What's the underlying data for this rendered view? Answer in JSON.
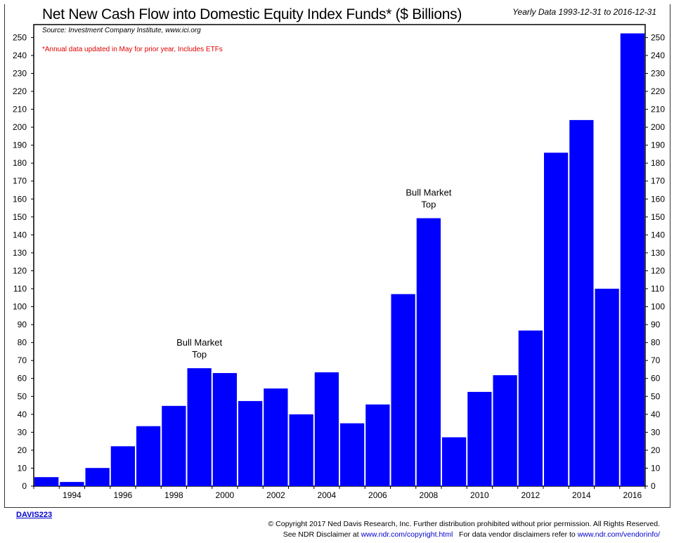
{
  "chart_data": {
    "type": "bar",
    "title": "Net New Cash Flow into Domestic Equity Index Funds* ($ Billions)",
    "subtitle": "Yearly Data 1993-12-31 to 2016-12-31",
    "source": "Source:  Investment Company Institute, www.ici.org",
    "note": "*Annual data updated in May for prior year, Includes ETFs",
    "categories": [
      1993,
      1994,
      1995,
      1996,
      1997,
      1998,
      1999,
      2000,
      2001,
      2002,
      2003,
      2004,
      2005,
      2006,
      2007,
      2008,
      2009,
      2010,
      2011,
      2012,
      2013,
      2014,
      2015,
      2016
    ],
    "values": [
      5,
      2.3,
      10.1,
      22.2,
      33.4,
      44.7,
      65.7,
      63,
      47.4,
      54.4,
      40,
      63.4,
      35,
      45.5,
      107,
      149.3,
      27.2,
      52.5,
      61.8,
      86.7,
      185.8,
      204,
      110,
      252.3
    ],
    "x_tick_labels": [
      "1994",
      "1996",
      "1998",
      "2000",
      "2002",
      "2004",
      "2006",
      "2008",
      "2010",
      "2012",
      "2014",
      "2016"
    ],
    "y_ticks": [
      0,
      10,
      20,
      30,
      40,
      50,
      60,
      70,
      80,
      90,
      100,
      110,
      120,
      130,
      140,
      150,
      160,
      170,
      180,
      190,
      200,
      210,
      220,
      230,
      240,
      250
    ],
    "ylim": [
      0,
      255
    ],
    "bar_color": "#0000ff",
    "grid": false,
    "annotations": [
      {
        "text": [
          "Bull Market",
          "Top"
        ],
        "year": 1999
      },
      {
        "text": [
          "Bull Market",
          "Top"
        ],
        "year": 2008
      }
    ]
  },
  "footer": {
    "id": "DAVIS223",
    "copyright": "© Copyright 2017 Ned Davis Research, Inc. Further distribution prohibited without prior permission. All Rights Reserved.",
    "disclaimer_prefix": "See NDR Disclaimer at ",
    "disclaimer_link": "www.ndr.com/copyright.html",
    "vendor_prefix": "   For data vendor disclaimers refer to ",
    "vendor_link": "www.ndr.com/vendorinfo/"
  }
}
